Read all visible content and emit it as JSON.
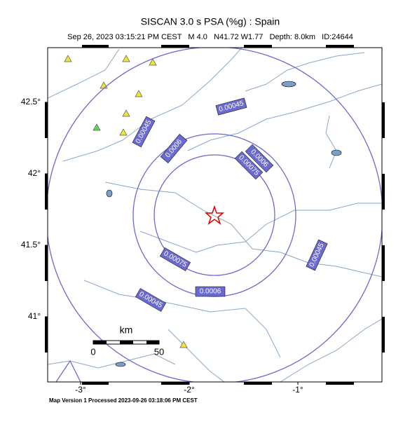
{
  "header": {
    "title": "SISCAN 3.0 s PSA (%g) : Spain",
    "subtitle": "Sep 26, 2023 03:15:21 PM CEST   M 4.0   N41.72 W1.77   Depth: 8.0km   ID:24644"
  },
  "map": {
    "lon_ticks": [
      {
        "value": -3,
        "label": "-3°"
      },
      {
        "value": -2,
        "label": "-2°"
      },
      {
        "value": -1,
        "label": "-1°"
      }
    ],
    "lat_ticks": [
      {
        "value": 42.5,
        "label": "42.5°"
      },
      {
        "value": 42,
        "label": "42°"
      },
      {
        "value": 41.5,
        "label": "41.5°"
      },
      {
        "value": 41,
        "label": "41°"
      }
    ],
    "contours": [
      {
        "level": 0.00045
      },
      {
        "level": 0.0006
      },
      {
        "level": 0.00075
      }
    ],
    "scale_bar": {
      "unit": "km",
      "labels": [
        0,
        50
      ]
    }
  },
  "footer": "Map Version 1 Processed 2023-09-26 03:18:06 PM CEST"
}
